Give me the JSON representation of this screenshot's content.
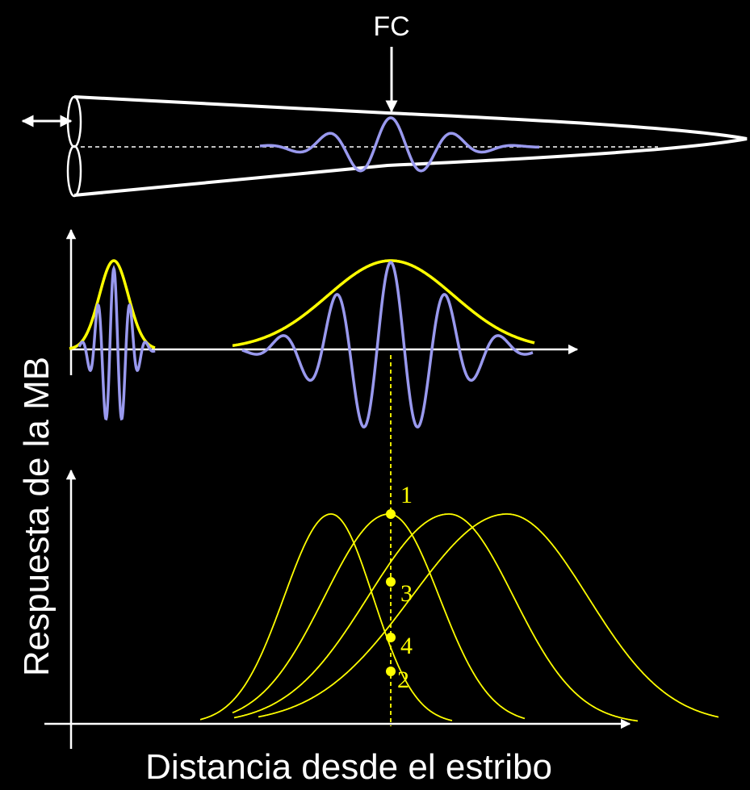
{
  "diagram": {
    "fc_label": "FC",
    "y_axis_label": "Respuesta de la MB",
    "x_axis_label": "Distancia desde el estribo",
    "point_labels": [
      "1",
      "3",
      "4",
      "2"
    ]
  },
  "colors": {
    "background": "#000000",
    "outline": "#ffffff",
    "wave": "#9999ee",
    "envelope": "#ffff00",
    "tuning_curves": "#ffff00",
    "text": "#ffffff",
    "point_label_text": "#ffff00"
  }
}
